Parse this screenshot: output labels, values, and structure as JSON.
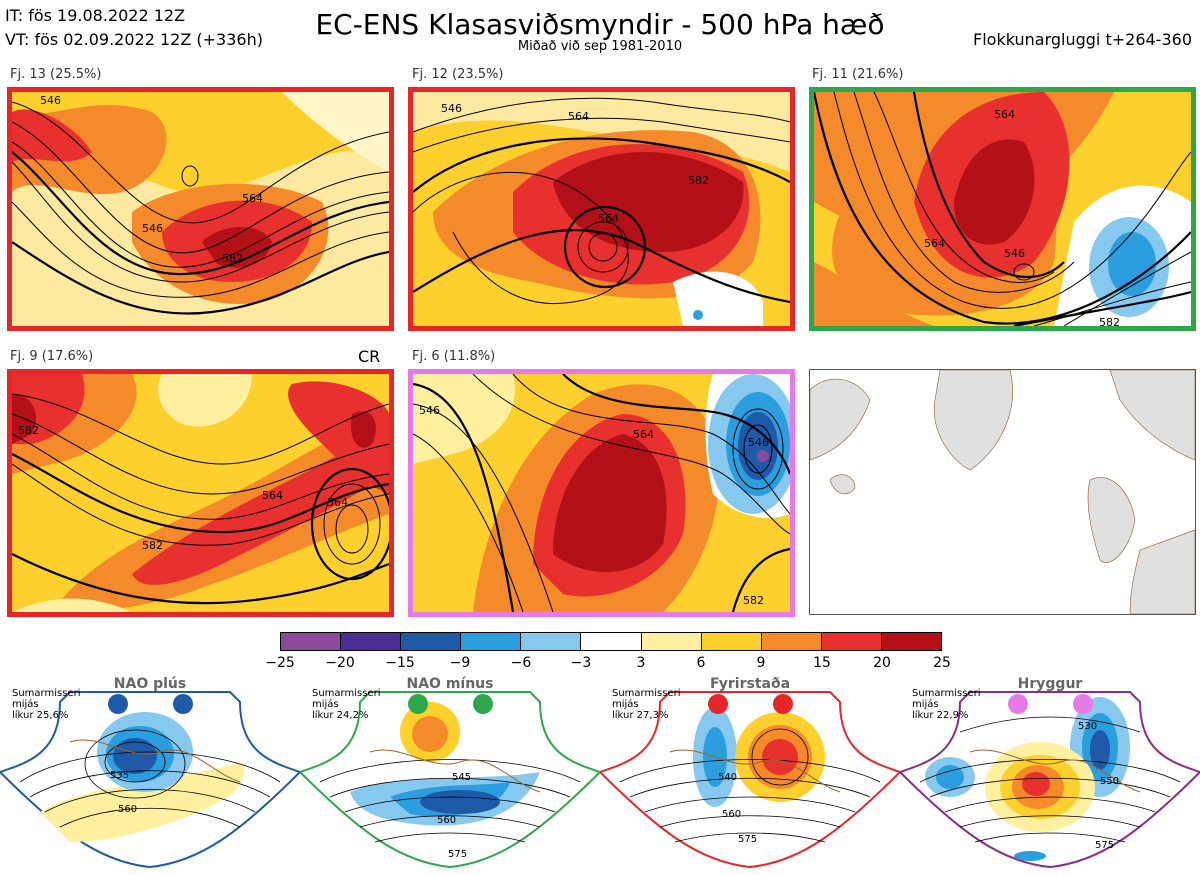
{
  "header": {
    "it": "IT: fös 19.08.2022 12Z",
    "vt": "VT: fös 02.09.2022 12Z  (+336h)",
    "title": "EC-ENS Klasasviðsmyndir - 500 hPa hæð",
    "subtitle": "Miðað við sep 1981-2010",
    "window": "Flokkunargluggi t+264-360"
  },
  "panels": [
    {
      "label": "Fj. 13 (25.5%)",
      "border": "#e8262a",
      "contours": [
        "546",
        "564",
        "582",
        "546"
      ]
    },
    {
      "label": "Fj. 12 (23.5%)",
      "border": "#e8262a",
      "contours": [
        "546",
        "564",
        "582",
        "564"
      ]
    },
    {
      "label": "Fj. 11 (21.6%)",
      "border": "#2ca84a",
      "contours": [
        "564",
        "546",
        "564",
        "582"
      ]
    },
    {
      "label": "Fj. 9 (17.6%)",
      "border": "#e8262a",
      "contours": [
        "582",
        "564",
        "564",
        "582"
      ],
      "tag": "CR"
    },
    {
      "label": "Fj. 6 (11.8%)",
      "border": "#e879e8",
      "contours": [
        "546",
        "564",
        "546",
        "582"
      ]
    }
  ],
  "colorbar": {
    "colors": [
      "#8b4a9c",
      "#4b2f96",
      "#1f5aa8",
      "#2b9ee0",
      "#86c8ee",
      "#ffffff",
      "#fff0a0",
      "#fdd02e",
      "#f58a2a",
      "#e8302e",
      "#b31018"
    ],
    "ticks": [
      "−25",
      "−20",
      "−15",
      "−9",
      "−6",
      "−3",
      "3",
      "6",
      "9",
      "15",
      "20",
      "25"
    ]
  },
  "regimes": [
    {
      "name": "NAO plús",
      "season": "Sumarmisseri",
      "freq": "mijás",
      "prob": "líkur 25,6%",
      "color": "#1f5aa8",
      "contours": [
        "535",
        "560"
      ]
    },
    {
      "name": "NAO mínus",
      "season": "Sumarmisseri",
      "freq": "mijás",
      "prob": "líkur 24,2%",
      "color": "#2ca84a",
      "contours": [
        "545",
        "560",
        "575"
      ]
    },
    {
      "name": "Fyrirstaða",
      "season": "Sumarmisseri",
      "freq": "mijás",
      "prob": "líkur 27,3%",
      "color": "#e8262a",
      "contours": [
        "540",
        "560",
        "575"
      ]
    },
    {
      "name": "Hryggur",
      "season": "Sumarmisseri",
      "freq": "mijás",
      "prob": "líkur 22,9%",
      "color": "#e879e8",
      "contours": [
        "530",
        "550",
        "575"
      ]
    }
  ]
}
